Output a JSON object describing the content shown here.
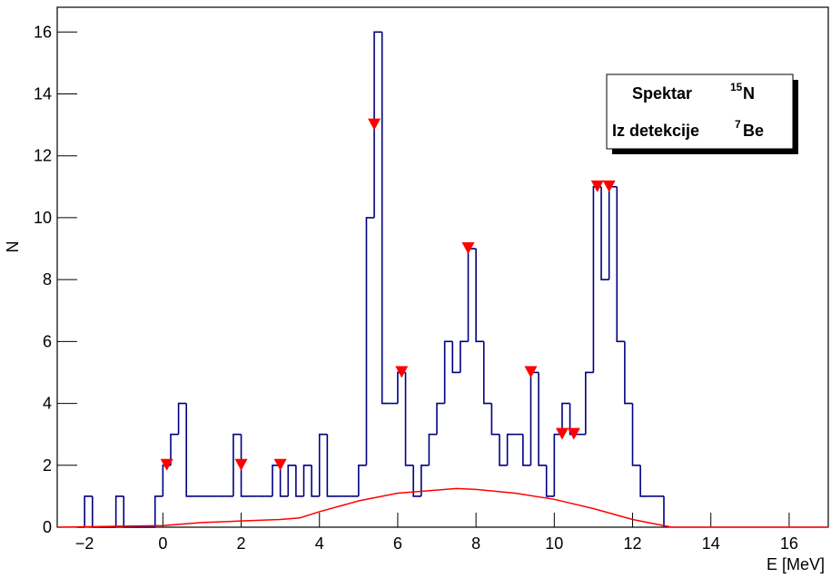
{
  "chart_data": {
    "type": "histogram",
    "x_label": "E [MeV]",
    "y_label": "N",
    "xlim": [
      -2.7,
      17.0
    ],
    "ylim": [
      0,
      16.8
    ],
    "xticks": [
      {
        "value": -2,
        "label": "−2"
      },
      0,
      2,
      4,
      6,
      8,
      10,
      12,
      14,
      16
    ],
    "yticks": [
      0,
      2,
      4,
      6,
      8,
      10,
      12,
      14,
      16
    ],
    "color": "#000080",
    "bins": [
      -2.2,
      -2.0,
      -1.8,
      -1.6,
      -1.4,
      -1.2,
      -1.0,
      -0.8,
      -0.6,
      -0.4,
      -0.2,
      0.0,
      0.2,
      0.4,
      0.6,
      0.8,
      1.0,
      1.2,
      1.4,
      1.6,
      1.8,
      2.0,
      2.2,
      2.4,
      2.6,
      2.8,
      3.0,
      3.2,
      3.4,
      3.6,
      3.8,
      4.0,
      4.2,
      4.4,
      4.6,
      4.8,
      5.0,
      5.2,
      5.4,
      5.6,
      5.8,
      6.0,
      6.2,
      6.4,
      6.6,
      6.8,
      7.0,
      7.2,
      7.4,
      7.6,
      7.8,
      8.0,
      8.2,
      8.4,
      8.6,
      8.8,
      9.0,
      9.2,
      9.4,
      9.6,
      9.8,
      10.0,
      10.2,
      10.4,
      10.6,
      10.8,
      11.0,
      11.2,
      11.4,
      11.6,
      11.8,
      12.0,
      12.2,
      12.4,
      12.6,
      12.8
    ],
    "counts": [
      0,
      1,
      0,
      0,
      0,
      1,
      0,
      0,
      0,
      0,
      1,
      2,
      3,
      4,
      1,
      1,
      1,
      1,
      1,
      1,
      3,
      1,
      1,
      1,
      1,
      2,
      1,
      2,
      1,
      2,
      1,
      3,
      1,
      1,
      1,
      1,
      2,
      10,
      16,
      4,
      4,
      5,
      2,
      1,
      2,
      3,
      4,
      6,
      5,
      6,
      9,
      6,
      4,
      3,
      2,
      3,
      3,
      2,
      5,
      2,
      1,
      3,
      4,
      3,
      3,
      5,
      11,
      8,
      11,
      6,
      4,
      2,
      1,
      1,
      1
    ],
    "overlays": [
      {
        "type": "line",
        "color": "#ff0000",
        "x": [
          -2.7,
          0,
          1,
          2,
          3,
          3.5,
          4,
          5,
          6,
          7,
          7.5,
          8,
          9,
          10,
          11,
          12,
          13,
          17
        ],
        "values": [
          0,
          0.05,
          0.15,
          0.2,
          0.25,
          0.3,
          0.5,
          0.85,
          1.1,
          1.2,
          1.25,
          1.22,
          1.1,
          0.9,
          0.6,
          0.25,
          0,
          0
        ]
      },
      {
        "type": "scatter",
        "marker": "triangle-down",
        "color": "#ff0000",
        "x": [
          0.1,
          2.0,
          3.0,
          5.4,
          6.1,
          7.8,
          9.4,
          10.2,
          10.5,
          11.1,
          11.4
        ],
        "values": [
          2,
          2,
          2,
          13,
          5,
          9,
          5,
          3,
          3,
          11,
          11
        ]
      }
    ],
    "annotations": [
      {
        "text": "Spektar",
        "superscript": "15",
        "element": "N"
      },
      {
        "text": "Iz detekcije",
        "superscript": "7",
        "element": "Be"
      }
    ]
  }
}
